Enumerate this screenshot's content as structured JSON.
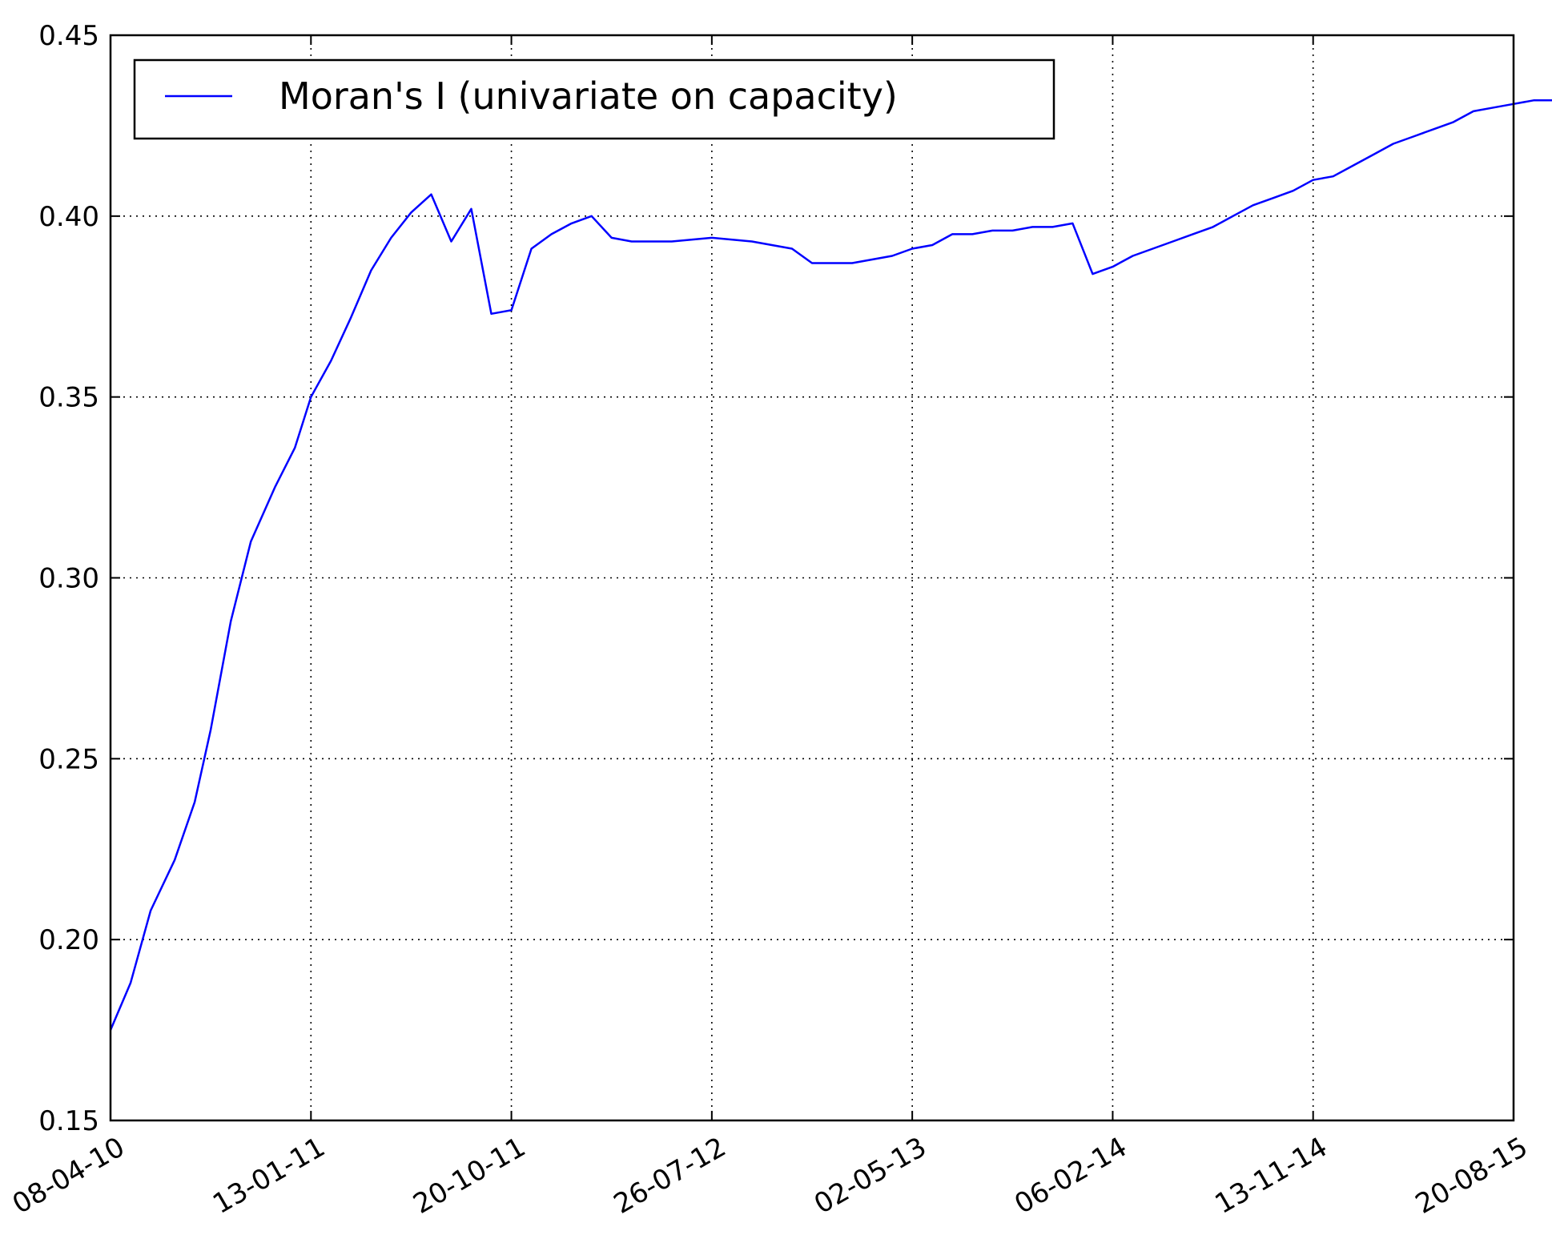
{
  "chart_data": {
    "type": "line",
    "title": "",
    "xlabel": "",
    "ylabel": "",
    "ylim": [
      0.15,
      0.45
    ],
    "grid": true,
    "legend_position": "top-left",
    "x_ticks": [
      "08-04-10",
      "13-01-11",
      "20-10-11",
      "26-07-12",
      "02-05-13",
      "06-02-14",
      "13-11-14",
      "20-08-15"
    ],
    "y_ticks": [
      "0.15",
      "0.20",
      "0.25",
      "0.30",
      "0.35",
      "0.40",
      "0.45"
    ],
    "series": [
      {
        "name": "Moran's I (univariate on capacity)",
        "color": "#0000ff",
        "points": [
          [
            0.0,
            0.175
          ],
          [
            0.1,
            0.188
          ],
          [
            0.2,
            0.208
          ],
          [
            0.32,
            0.222
          ],
          [
            0.42,
            0.238
          ],
          [
            0.5,
            0.258
          ],
          [
            0.6,
            0.288
          ],
          [
            0.7,
            0.31
          ],
          [
            0.82,
            0.325
          ],
          [
            0.92,
            0.336
          ],
          [
            1.0,
            0.35
          ],
          [
            1.1,
            0.36
          ],
          [
            1.2,
            0.372
          ],
          [
            1.3,
            0.385
          ],
          [
            1.4,
            0.394
          ],
          [
            1.5,
            0.401
          ],
          [
            1.6,
            0.406
          ],
          [
            1.7,
            0.393
          ],
          [
            1.8,
            0.402
          ],
          [
            1.9,
            0.373
          ],
          [
            2.0,
            0.374
          ],
          [
            2.1,
            0.391
          ],
          [
            2.2,
            0.395
          ],
          [
            2.3,
            0.398
          ],
          [
            2.4,
            0.4
          ],
          [
            2.5,
            0.394
          ],
          [
            2.6,
            0.393
          ],
          [
            2.8,
            0.393
          ],
          [
            3.0,
            0.394
          ],
          [
            3.2,
            0.393
          ],
          [
            3.3,
            0.392
          ],
          [
            3.4,
            0.391
          ],
          [
            3.5,
            0.387
          ],
          [
            3.6,
            0.387
          ],
          [
            3.7,
            0.387
          ],
          [
            3.8,
            0.388
          ],
          [
            3.9,
            0.389
          ],
          [
            4.0,
            0.391
          ],
          [
            4.1,
            0.392
          ],
          [
            4.2,
            0.395
          ],
          [
            4.3,
            0.395
          ],
          [
            4.4,
            0.396
          ],
          [
            4.5,
            0.396
          ],
          [
            4.6,
            0.397
          ],
          [
            4.7,
            0.397
          ],
          [
            4.8,
            0.398
          ],
          [
            4.9,
            0.384
          ],
          [
            5.0,
            0.386
          ],
          [
            5.1,
            0.389
          ],
          [
            5.2,
            0.391
          ],
          [
            5.3,
            0.393
          ],
          [
            5.4,
            0.395
          ],
          [
            5.5,
            0.397
          ],
          [
            5.6,
            0.4
          ],
          [
            5.7,
            0.403
          ],
          [
            5.8,
            0.405
          ],
          [
            5.9,
            0.407
          ],
          [
            6.0,
            0.41
          ],
          [
            6.1,
            0.411
          ],
          [
            6.2,
            0.414
          ],
          [
            6.3,
            0.417
          ],
          [
            6.4,
            0.42
          ],
          [
            6.5,
            0.422
          ],
          [
            6.6,
            0.424
          ],
          [
            6.7,
            0.426
          ],
          [
            6.8,
            0.429
          ],
          [
            6.9,
            0.43
          ],
          [
            7.0,
            0.431
          ],
          [
            7.1,
            0.432
          ],
          [
            7.2,
            0.432
          ]
        ]
      }
    ]
  }
}
